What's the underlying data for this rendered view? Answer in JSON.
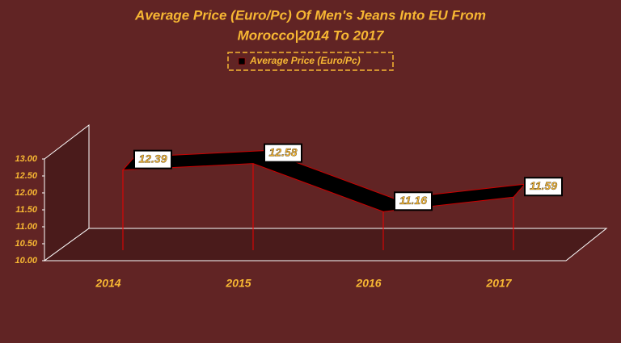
{
  "chart_data": {
    "type": "line",
    "title_lines": [
      "Average Price (Euro/Pc) Of Men's Jeans Into EU From",
      "Morocco|2014 To 2017"
    ],
    "categories": [
      "2014",
      "2015",
      "2016",
      "2017"
    ],
    "series": [
      {
        "name": "Average Price (Euro/Pc)",
        "color": "#000000",
        "values": [
          12.39,
          12.58,
          11.16,
          11.59
        ]
      }
    ],
    "ylim": [
      10,
      13
    ],
    "yticks": [
      {
        "value": 10,
        "label": "10.00"
      },
      {
        "value": 10.5,
        "label": "10.50"
      },
      {
        "value": 11,
        "label": "11.00"
      },
      {
        "value": 11.5,
        "label": "11.50"
      },
      {
        "value": 12,
        "label": "12.00"
      },
      {
        "value": 12.5,
        "label": "12.50"
      },
      {
        "value": 13,
        "label": "13.00"
      }
    ]
  }
}
